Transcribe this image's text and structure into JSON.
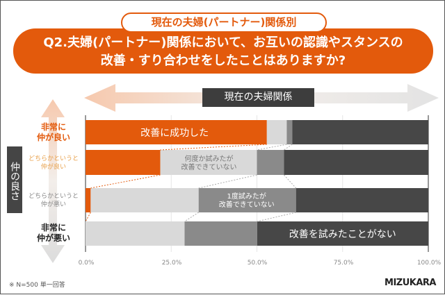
{
  "header": {
    "subtitle": "現在の夫婦(パートナー)関係別",
    "question_line1": "Q2.夫婦(パートナー)関係において、お互いの認識やスタンスの",
    "question_line2": "改善・すり合わせをしたことはありますか?"
  },
  "axis_banner": "現在の夫婦関係",
  "side_label": "仲の良さ",
  "footer": {
    "note": "※ N=500 単一回答",
    "logo": "MIZUKARA"
  },
  "colors": {
    "accent": "#e35a0c",
    "light": "#d9d9d9",
    "mid": "#8a8a8a",
    "dark": "#474747"
  },
  "chart_data": {
    "type": "bar",
    "orientation": "horizontal-stacked-100",
    "categories": [
      "非常に\n仲が良い",
      "どちらかというと\n仲が良い",
      "どちらかというと\n仲が悪い",
      "非常に\n仲が悪い"
    ],
    "series": [
      {
        "name": "改善に成功した",
        "color": "#e35a0c",
        "values": [
          52.9,
          21.8,
          1.5,
          0
        ]
      },
      {
        "name": "何度か試みたが改善できていない",
        "color": "#d9d9d9",
        "values": [
          5.8,
          28.2,
          31.5,
          28.9
        ]
      },
      {
        "name": "1度試みたが改善できていない",
        "color": "#8a8a8a",
        "values": [
          1.6,
          7.9,
          28.4,
          21.2
        ]
      },
      {
        "name": "改善を試みたことがない",
        "color": "#474747",
        "values": [
          39.7,
          42.1,
          38.6,
          49.9
        ]
      }
    ],
    "xticks": [
      "0.0%",
      "25.0%",
      "50.0%",
      "75.0%",
      "100.0%"
    ],
    "xlim": [
      0,
      100
    ],
    "grid": true
  }
}
